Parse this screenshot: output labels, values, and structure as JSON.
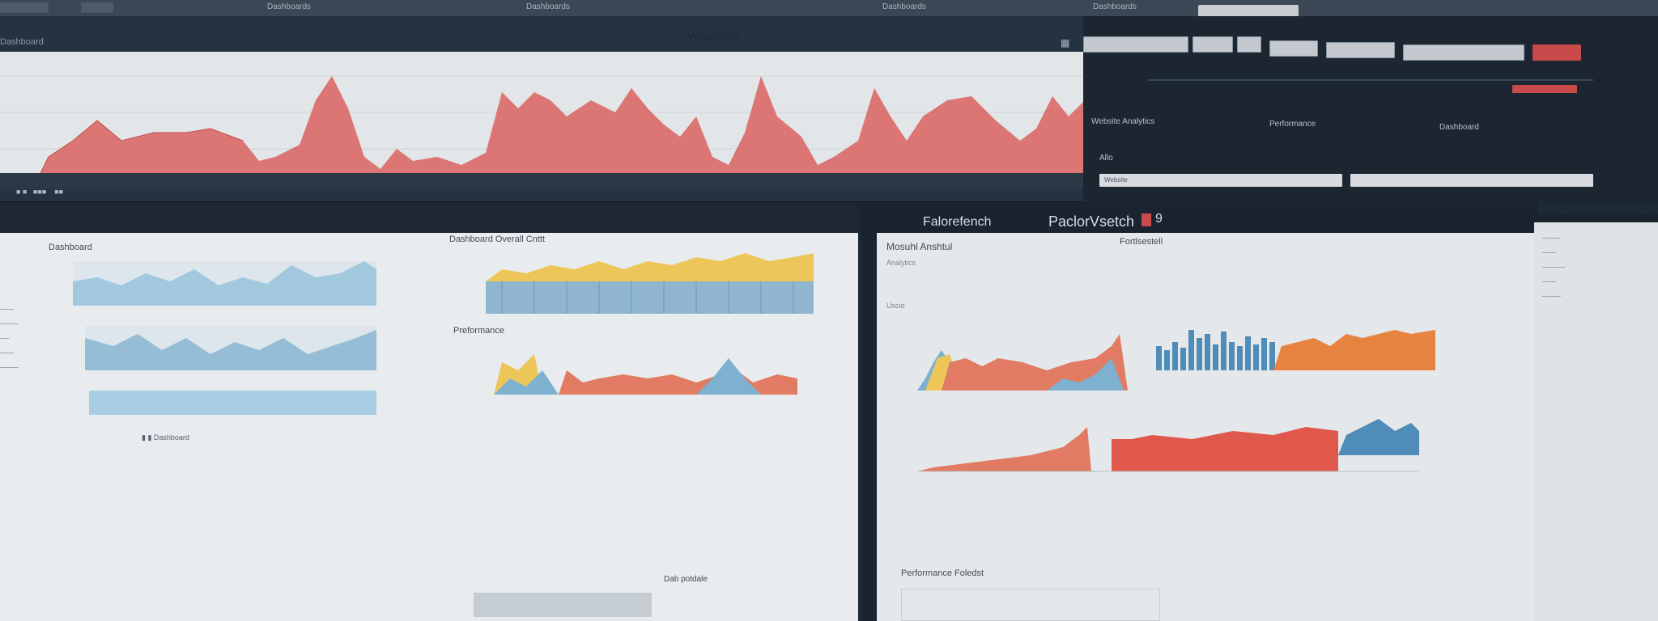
{
  "top_window": {
    "title": "Wesaehell",
    "breadcrumb": "Dashboard",
    "menu_icon": "menu-icon",
    "buttons": [
      "",
      "",
      "",
      "",
      "",
      ""
    ],
    "browser_labels": [
      "Dashboards",
      "Dashboards",
      "Dashboards",
      "Dashboards"
    ]
  },
  "right_top_panel": {
    "rows": [
      "Website Analytics",
      "Performance",
      "Dashboard"
    ],
    "input_label": "Allo",
    "input_value": "Website"
  },
  "lower_left": {
    "panel1_title": "Dashboard",
    "panel2_title": "Dashboard Overall Cnttt",
    "panel3_title": "Preformance",
    "panel4_title": "Dab potdale",
    "legend_text": "Dashboard"
  },
  "lower_right": {
    "header_left": "Falorefench",
    "header_right": "PaclorVsetch",
    "header_count": "9",
    "screen_title": "Mosuhl Anshtul",
    "sub_label": "Analytics",
    "panel_label": "Uscio",
    "right_label": "Fortlsestell",
    "bottom_title": "Performance Foledst"
  },
  "colors": {
    "red": "#d9625f",
    "blue": "#4f8cb8",
    "light_blue": "#9bc4dd",
    "orange": "#e6833f",
    "yellow": "#edc65a",
    "dark": "#1c2631"
  }
}
